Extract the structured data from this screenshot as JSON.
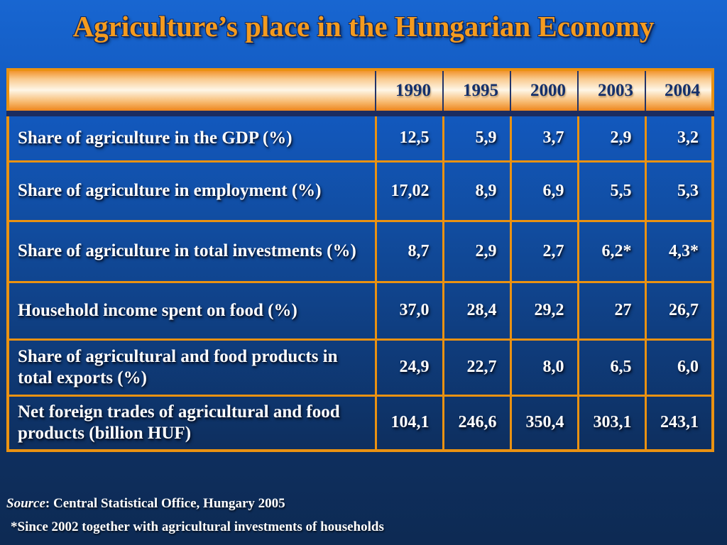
{
  "title": "Agriculture’s place in the Hungarian Economy",
  "table": {
    "year_headers": [
      "1990",
      "1995",
      "2000",
      "2003",
      "2004"
    ],
    "rows": [
      {
        "label": "Share of agriculture in the GDP (%)",
        "values": [
          "12,5",
          "5,9",
          "3,7",
          "2,9",
          "3,2"
        ]
      },
      {
        "label": "Share of agriculture in employment (%)",
        "values": [
          "17,02",
          "8,9",
          "6,9",
          "5,5",
          "5,3"
        ]
      },
      {
        "label": "Share of agriculture in total investments (%)",
        "values": [
          "8,7",
          "2,9",
          "2,7",
          "6,2*",
          "4,3*"
        ]
      },
      {
        "label": "Household income spent on food (%)",
        "values": [
          "37,0",
          "28,4",
          "29,2",
          "27",
          "26,7"
        ]
      },
      {
        "label": "Share of agricultural and food products in total exports (%)",
        "values": [
          "24,9",
          "22,7",
          "8,0",
          "6,5",
          "6,0"
        ]
      },
      {
        "label": "Net foreign trades of agricultural and food products (billion HUF)",
        "values": [
          "104,1",
          "246,6",
          "350,4",
          "303,1",
          "243,1"
        ]
      }
    ]
  },
  "footer": {
    "source_label": "Source",
    "source_rest": ": Central Statistical Office, Hungary 2005",
    "footnote": "*Since 2002 together with agricultural investments of households"
  },
  "colors": {
    "title_orange": "#F59B1E",
    "grid_orange": "#EA9212",
    "header_cream": "#FEF6E7",
    "header_text_navy": "#14306B",
    "background_top_blue": "#1866D1",
    "background_bottom_navy": "#0D2A53",
    "body_text": "#FFFFFF"
  }
}
